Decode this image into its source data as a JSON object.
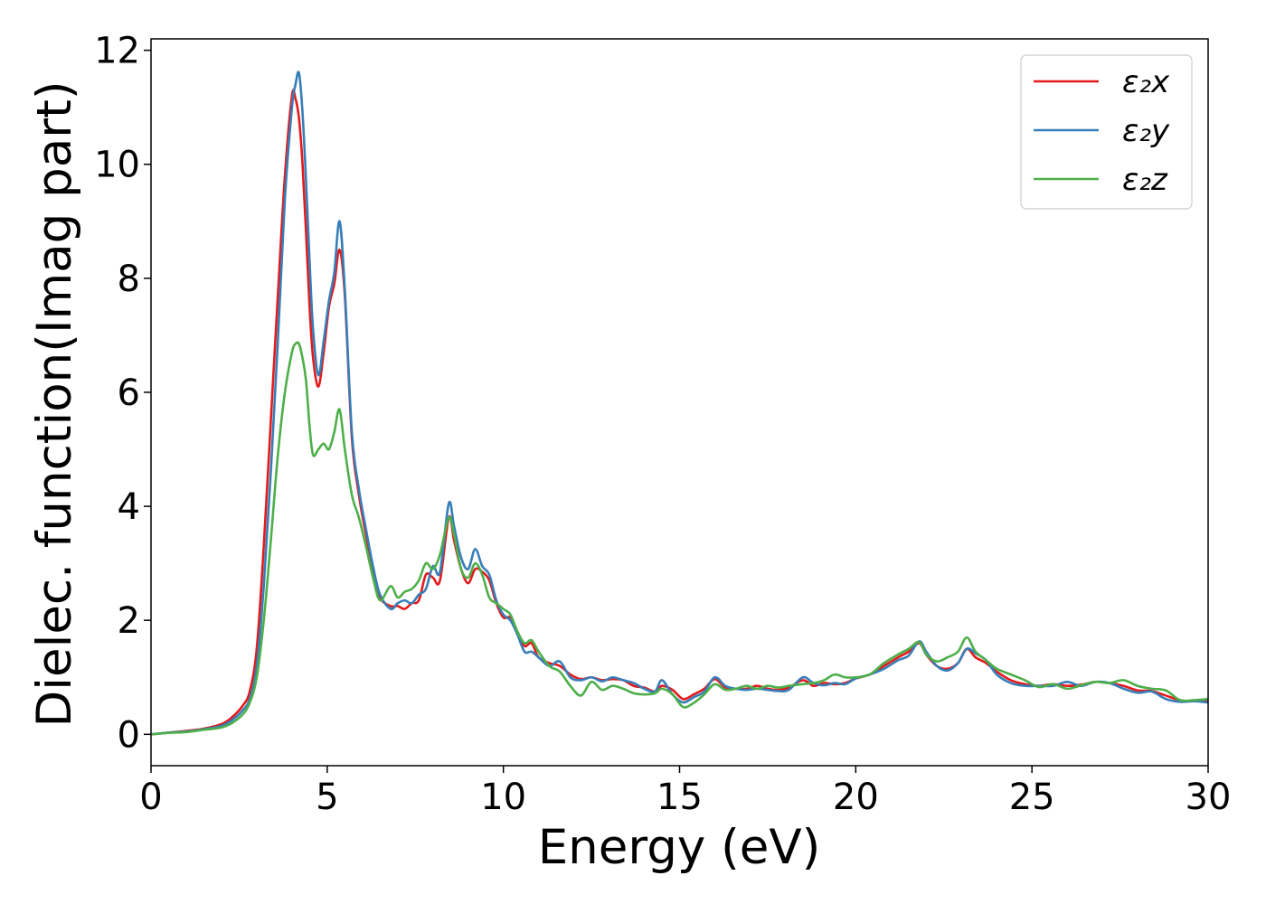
{
  "chart_data": {
    "type": "line",
    "xlabel": "Energy (eV)",
    "ylabel": "Dielec. function(Imag part)",
    "xlim": [
      0,
      30
    ],
    "ylim": [
      -0.55,
      12.2
    ],
    "xticks": [
      0,
      5,
      10,
      15,
      20,
      25,
      30
    ],
    "yticks": [
      0,
      2,
      4,
      6,
      8,
      10,
      12
    ],
    "grid": false,
    "legend_position": "top-right",
    "x": [
      0,
      0.5,
      1,
      1.5,
      2,
      2.3,
      2.6,
      2.8,
      3,
      3.2,
      3.4,
      3.6,
      3.8,
      4,
      4.1,
      4.2,
      4.3,
      4.4,
      4.5,
      4.6,
      4.75,
      4.9,
      5.05,
      5.2,
      5.35,
      5.5,
      5.7,
      5.9,
      6.1,
      6.3,
      6.5,
      6.8,
      7,
      7.2,
      7.4,
      7.6,
      7.8,
      8,
      8.2,
      8.45,
      8.6,
      8.8,
      9,
      9.2,
      9.4,
      9.6,
      9.8,
      10,
      10.2,
      10.4,
      10.6,
      10.8,
      11,
      11.3,
      11.6,
      11.9,
      12.2,
      12.5,
      12.8,
      13.1,
      13.4,
      13.7,
      14,
      14.3,
      14.5,
      14.8,
      15.1,
      15.4,
      15.7,
      16,
      16.3,
      16.6,
      16.9,
      17.2,
      17.5,
      17.8,
      18.1,
      18.5,
      18.8,
      19.1,
      19.4,
      19.7,
      20,
      20.4,
      20.8,
      21.2,
      21.5,
      21.8,
      22,
      22.3,
      22.6,
      22.9,
      23.15,
      23.4,
      23.7,
      24,
      24.4,
      24.8,
      25.2,
      25.6,
      26,
      26.4,
      26.8,
      27.2,
      27.6,
      28,
      28.4,
      28.8,
      29.2,
      29.6,
      30
    ],
    "series": [
      {
        "name": "ε₂x",
        "color": "#e41a1c",
        "values": [
          0,
          0.03,
          0.06,
          0.1,
          0.18,
          0.3,
          0.5,
          0.75,
          1.5,
          3.3,
          5.5,
          7.7,
          9.8,
          11.2,
          11.15,
          10.8,
          10.0,
          8.8,
          7.5,
          6.6,
          6.1,
          6.7,
          7.5,
          7.9,
          8.5,
          7.7,
          5.2,
          4.2,
          3.5,
          2.9,
          2.4,
          2.25,
          2.25,
          2.2,
          2.3,
          2.35,
          2.8,
          2.75,
          2.7,
          3.8,
          3.4,
          2.9,
          2.65,
          2.9,
          2.85,
          2.7,
          2.3,
          2.05,
          2.05,
          1.8,
          1.55,
          1.6,
          1.35,
          1.25,
          1.2,
          1.05,
          0.97,
          1.0,
          0.95,
          0.97,
          0.95,
          0.85,
          0.82,
          0.75,
          0.85,
          0.78,
          0.62,
          0.7,
          0.8,
          0.97,
          0.82,
          0.8,
          0.8,
          0.85,
          0.8,
          0.78,
          0.82,
          0.95,
          0.85,
          0.9,
          0.88,
          0.9,
          0.98,
          1.05,
          1.2,
          1.35,
          1.45,
          1.6,
          1.4,
          1.2,
          1.15,
          1.25,
          1.5,
          1.35,
          1.25,
          1.1,
          0.95,
          0.88,
          0.85,
          0.88,
          0.85,
          0.87,
          0.92,
          0.9,
          0.85,
          0.77,
          0.76,
          0.68,
          0.6,
          0.58,
          0.6
        ]
      },
      {
        "name": "ε₂y",
        "color": "#377eb8",
        "values": [
          0,
          0.03,
          0.05,
          0.09,
          0.15,
          0.25,
          0.42,
          0.62,
          1.2,
          2.6,
          4.6,
          6.9,
          9.4,
          11.0,
          11.4,
          11.6,
          10.9,
          9.7,
          8.3,
          7.1,
          6.3,
          6.9,
          7.6,
          8.1,
          9.0,
          7.8,
          5.3,
          4.3,
          3.6,
          2.95,
          2.45,
          2.2,
          2.3,
          2.35,
          2.3,
          2.45,
          2.55,
          2.95,
          2.85,
          4.05,
          3.65,
          3.1,
          2.9,
          3.25,
          2.95,
          2.8,
          2.35,
          2.1,
          2.0,
          1.75,
          1.45,
          1.45,
          1.35,
          1.2,
          1.28,
          1.0,
          0.95,
          1.0,
          0.93,
          1.0,
          0.95,
          0.9,
          0.8,
          0.75,
          0.95,
          0.7,
          0.56,
          0.65,
          0.75,
          1.0,
          0.85,
          0.8,
          0.78,
          0.8,
          0.78,
          0.76,
          0.78,
          1.0,
          0.9,
          0.86,
          0.9,
          0.88,
          0.98,
          1.05,
          1.15,
          1.3,
          1.38,
          1.63,
          1.45,
          1.2,
          1.12,
          1.25,
          1.5,
          1.42,
          1.3,
          1.05,
          0.9,
          0.85,
          0.85,
          0.85,
          0.92,
          0.85,
          0.92,
          0.9,
          0.8,
          0.73,
          0.75,
          0.62,
          0.57,
          0.58,
          0.56
        ]
      },
      {
        "name": "ε₂z",
        "color": "#4daf4a",
        "values": [
          0,
          0.025,
          0.04,
          0.08,
          0.12,
          0.2,
          0.35,
          0.55,
          1.0,
          2.0,
          3.4,
          4.9,
          6.0,
          6.7,
          6.85,
          6.85,
          6.6,
          6.2,
          5.4,
          4.9,
          5.0,
          5.1,
          5.0,
          5.3,
          5.7,
          5.0,
          4.2,
          3.8,
          3.3,
          2.75,
          2.35,
          2.6,
          2.4,
          2.5,
          2.55,
          2.7,
          3.0,
          2.9,
          3.15,
          3.8,
          3.5,
          2.9,
          2.75,
          3.0,
          2.8,
          2.4,
          2.3,
          2.2,
          2.1,
          1.8,
          1.6,
          1.65,
          1.45,
          1.2,
          1.1,
          0.85,
          0.68,
          0.92,
          0.78,
          0.85,
          0.8,
          0.72,
          0.7,
          0.72,
          0.8,
          0.7,
          0.48,
          0.55,
          0.7,
          0.88,
          0.78,
          0.8,
          0.85,
          0.8,
          0.85,
          0.82,
          0.85,
          0.88,
          0.9,
          0.95,
          1.05,
          1.0,
          1.0,
          1.05,
          1.25,
          1.4,
          1.5,
          1.62,
          1.4,
          1.28,
          1.35,
          1.45,
          1.7,
          1.45,
          1.3,
          1.15,
          1.05,
          0.95,
          0.83,
          0.88,
          0.8,
          0.86,
          0.92,
          0.9,
          0.95,
          0.85,
          0.8,
          0.77,
          0.6,
          0.6,
          0.62
        ]
      }
    ]
  }
}
